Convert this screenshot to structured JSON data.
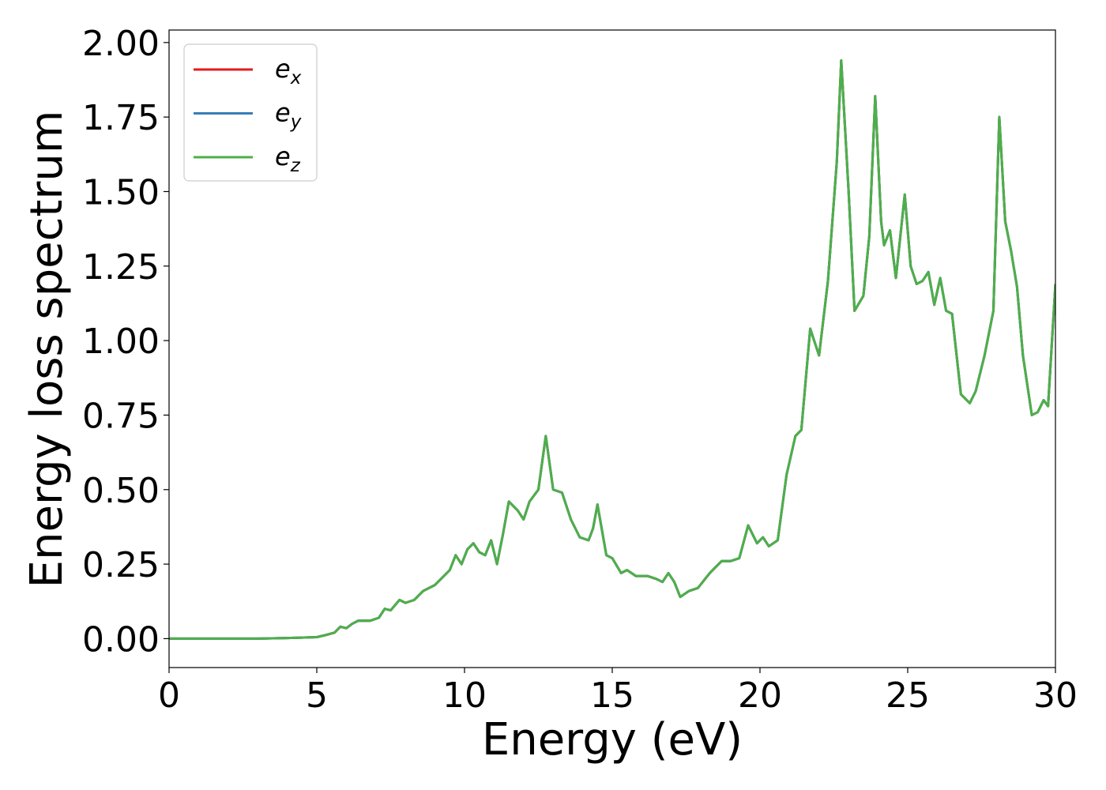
{
  "chart_data": {
    "type": "line",
    "x_label": "Energy (eV)",
    "y_label": "Energy loss spectrum",
    "x": [
      0,
      1,
      2,
      3,
      4,
      5,
      5.3,
      5.6,
      5.8,
      6.0,
      6.2,
      6.4,
      6.8,
      7.1,
      7.3,
      7.5,
      7.8,
      8.0,
      8.3,
      8.6,
      9.0,
      9.2,
      9.5,
      9.7,
      9.9,
      10.1,
      10.3,
      10.5,
      10.7,
      10.9,
      11.1,
      11.3,
      11.5,
      11.8,
      12.0,
      12.2,
      12.5,
      12.75,
      13.0,
      13.3,
      13.6,
      13.9,
      14.2,
      14.35,
      14.5,
      14.8,
      15.0,
      15.3,
      15.5,
      15.8,
      16.2,
      16.5,
      16.7,
      16.9,
      17.1,
      17.3,
      17.6,
      17.9,
      18.3,
      18.5,
      18.7,
      19.0,
      19.3,
      19.6,
      19.9,
      20.1,
      20.3,
      20.6,
      20.9,
      21.2,
      21.4,
      21.7,
      21.9,
      22.0,
      22.3,
      22.6,
      22.75,
      23.0,
      23.2,
      23.5,
      23.7,
      23.9,
      24.1,
      24.2,
      24.4,
      24.6,
      24.9,
      25.1,
      25.3,
      25.5,
      25.7,
      25.9,
      26.1,
      26.3,
      26.5,
      26.8,
      27.1,
      27.3,
      27.6,
      27.9,
      28.1,
      28.3,
      28.5,
      28.7,
      28.9,
      29.2,
      29.4,
      29.6,
      29.75,
      30
    ],
    "series": [
      {
        "name": "e_x",
        "color": "#e41a1c",
        "values": [
          0,
          0,
          0,
          0,
          0.002,
          0.005,
          0.012,
          0.02,
          0.04,
          0.035,
          0.05,
          0.06,
          0.06,
          0.07,
          0.1,
          0.095,
          0.13,
          0.12,
          0.13,
          0.16,
          0.18,
          0.2,
          0.23,
          0.28,
          0.25,
          0.3,
          0.32,
          0.29,
          0.28,
          0.33,
          0.25,
          0.35,
          0.46,
          0.43,
          0.4,
          0.46,
          0.5,
          0.68,
          0.5,
          0.49,
          0.4,
          0.34,
          0.33,
          0.37,
          0.45,
          0.28,
          0.27,
          0.22,
          0.23,
          0.21,
          0.21,
          0.2,
          0.19,
          0.22,
          0.19,
          0.14,
          0.16,
          0.17,
          0.22,
          0.24,
          0.26,
          0.26,
          0.27,
          0.38,
          0.32,
          0.34,
          0.31,
          0.33,
          0.55,
          0.68,
          0.7,
          1.04,
          0.98,
          0.95,
          1.2,
          1.6,
          1.94,
          1.5,
          1.1,
          1.15,
          1.35,
          1.82,
          1.4,
          1.32,
          1.37,
          1.21,
          1.49,
          1.25,
          1.19,
          1.2,
          1.23,
          1.12,
          1.21,
          1.1,
          1.09,
          0.82,
          0.79,
          0.83,
          0.95,
          1.1,
          1.75,
          1.4,
          1.3,
          1.18,
          0.95,
          0.75,
          0.76,
          0.8,
          0.78,
          1.19
        ]
      },
      {
        "name": "e_y",
        "color": "#377eb8",
        "values": [
          0,
          0,
          0,
          0,
          0.002,
          0.005,
          0.012,
          0.02,
          0.04,
          0.035,
          0.05,
          0.06,
          0.06,
          0.07,
          0.1,
          0.095,
          0.13,
          0.12,
          0.13,
          0.16,
          0.18,
          0.2,
          0.23,
          0.28,
          0.25,
          0.3,
          0.32,
          0.29,
          0.28,
          0.33,
          0.25,
          0.35,
          0.46,
          0.43,
          0.4,
          0.46,
          0.5,
          0.68,
          0.5,
          0.49,
          0.4,
          0.34,
          0.33,
          0.37,
          0.45,
          0.28,
          0.27,
          0.22,
          0.23,
          0.21,
          0.21,
          0.2,
          0.19,
          0.22,
          0.19,
          0.14,
          0.16,
          0.17,
          0.22,
          0.24,
          0.26,
          0.26,
          0.27,
          0.38,
          0.32,
          0.34,
          0.31,
          0.33,
          0.55,
          0.68,
          0.7,
          1.04,
          0.98,
          0.95,
          1.2,
          1.6,
          1.94,
          1.5,
          1.1,
          1.15,
          1.35,
          1.82,
          1.4,
          1.32,
          1.37,
          1.21,
          1.49,
          1.25,
          1.19,
          1.2,
          1.23,
          1.12,
          1.21,
          1.1,
          1.09,
          0.82,
          0.79,
          0.83,
          0.95,
          1.1,
          1.75,
          1.4,
          1.3,
          1.18,
          0.95,
          0.75,
          0.76,
          0.8,
          0.78,
          1.19
        ]
      },
      {
        "name": "e_z",
        "color": "#4daf4a",
        "values": [
          0,
          0,
          0,
          0,
          0.002,
          0.005,
          0.012,
          0.02,
          0.04,
          0.035,
          0.05,
          0.06,
          0.06,
          0.07,
          0.1,
          0.095,
          0.13,
          0.12,
          0.13,
          0.16,
          0.18,
          0.2,
          0.23,
          0.28,
          0.25,
          0.3,
          0.32,
          0.29,
          0.28,
          0.33,
          0.25,
          0.35,
          0.46,
          0.43,
          0.4,
          0.46,
          0.5,
          0.68,
          0.5,
          0.49,
          0.4,
          0.34,
          0.33,
          0.37,
          0.45,
          0.28,
          0.27,
          0.22,
          0.23,
          0.21,
          0.21,
          0.2,
          0.19,
          0.22,
          0.19,
          0.14,
          0.16,
          0.17,
          0.22,
          0.24,
          0.26,
          0.26,
          0.27,
          0.38,
          0.32,
          0.34,
          0.31,
          0.33,
          0.55,
          0.68,
          0.7,
          1.04,
          0.98,
          0.95,
          1.2,
          1.6,
          1.94,
          1.5,
          1.1,
          1.15,
          1.35,
          1.82,
          1.4,
          1.32,
          1.37,
          1.21,
          1.49,
          1.25,
          1.19,
          1.2,
          1.23,
          1.12,
          1.21,
          1.1,
          1.09,
          0.82,
          0.79,
          0.83,
          0.95,
          1.1,
          1.75,
          1.4,
          1.3,
          1.18,
          0.95,
          0.75,
          0.76,
          0.8,
          0.78,
          1.19
        ]
      }
    ],
    "xlim": [
      0,
      30
    ],
    "xticks": [
      0,
      5,
      10,
      15,
      20,
      25,
      30
    ],
    "ylim": [
      -0.097,
      2.042
    ],
    "yticks": [
      {
        "value": 0,
        "label": "0.00"
      },
      {
        "value": 0.25,
        "label": "0.25"
      },
      {
        "value": 0.5,
        "label": "0.50"
      },
      {
        "value": 0.75,
        "label": "0.75"
      },
      {
        "value": 1,
        "label": "1.00"
      },
      {
        "value": 1.25,
        "label": "1.25"
      },
      {
        "value": 1.5,
        "label": "1.50"
      },
      {
        "value": 1.75,
        "label": "1.75"
      },
      {
        "value": 2,
        "label": "2.00"
      }
    ],
    "grid": false,
    "legend": "upper left"
  }
}
